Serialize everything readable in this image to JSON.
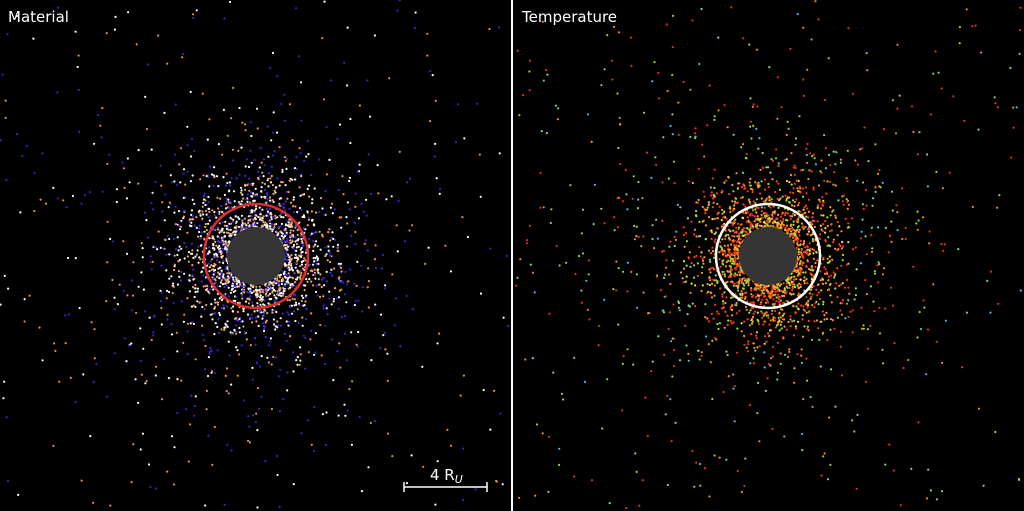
{
  "panels": [
    {
      "label": "Material"
    },
    {
      "label": "Temperature"
    }
  ],
  "scale_bar": {
    "label": "4 R",
    "subscript": "U"
  }
}
